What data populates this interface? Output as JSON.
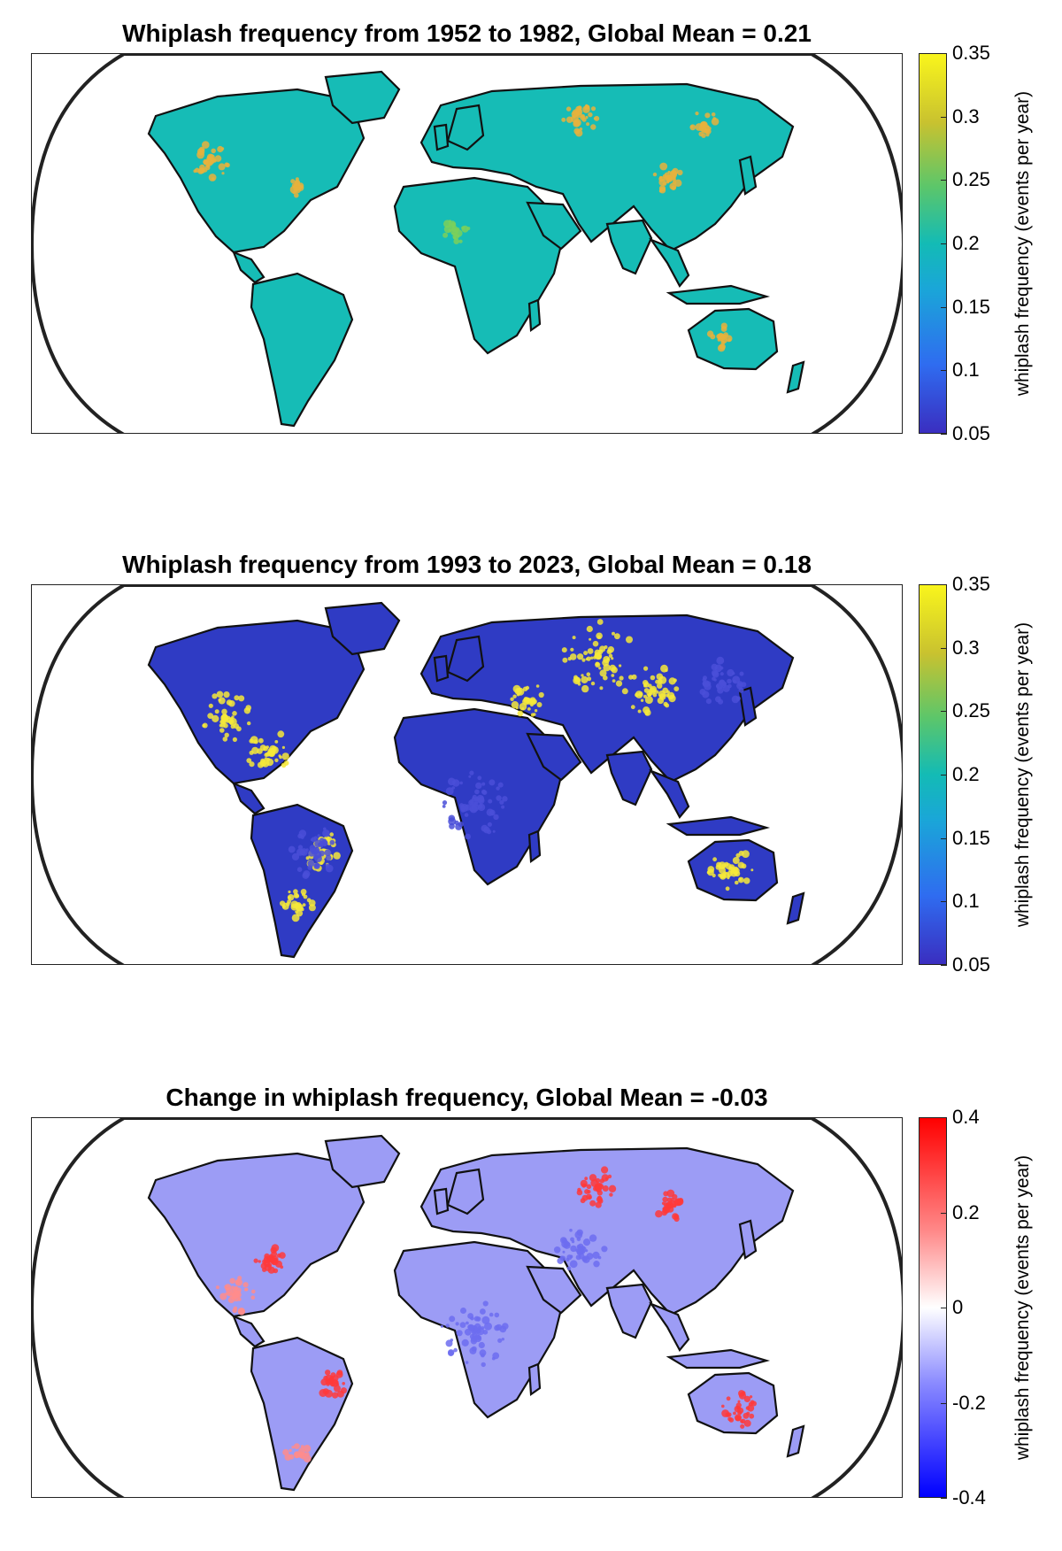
{
  "panels": [
    {
      "title": "Whiplash frequency from 1952 to 1982, Global Mean = 0.21",
      "colormap": "sequential",
      "land_color": "#16bcb6",
      "colorbar": {
        "label": "whiplash frequency (events per year)",
        "ticks": [
          "0.35",
          "0.3",
          "0.25",
          "0.2",
          "0.15",
          "0.1",
          "0.05"
        ],
        "range": [
          0.05,
          0.35
        ]
      }
    },
    {
      "title": "Whiplash frequency from 1993 to 2023, Global Mean = 0.18",
      "colormap": "sequential",
      "land_color": "#2f3bc4",
      "colorbar": {
        "label": "whiplash frequency (events per year)",
        "ticks": [
          "0.35",
          "0.3",
          "0.25",
          "0.2",
          "0.15",
          "0.1",
          "0.05"
        ],
        "range": [
          0.05,
          0.35
        ]
      }
    },
    {
      "title": "Change in whiplash frequency, Global Mean = -0.03",
      "colormap": "diverging",
      "land_color": "#9c9cf5",
      "colorbar": {
        "label": "whiplash frequency (events per year)",
        "ticks": [
          "0.4",
          "0.2",
          "0",
          "-0.2",
          "-0.4"
        ],
        "range": [
          -0.4,
          0.4
        ]
      }
    }
  ]
}
